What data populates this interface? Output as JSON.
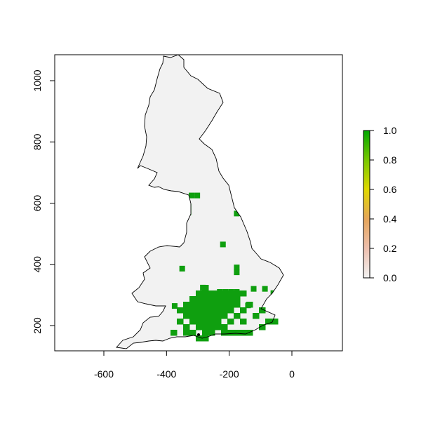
{
  "map": {
    "x_axis": {
      "min": -760,
      "max": 160,
      "ticks": [
        -600,
        -400,
        -200,
        0
      ],
      "labels": [
        "-600",
        "-400",
        "-200",
        "0"
      ]
    },
    "y_axis": {
      "min": 116,
      "max": 1064,
      "ticks": [
        200,
        400,
        600,
        800,
        1000
      ],
      "labels": [
        "200",
        "400",
        "600",
        "800",
        "1000"
      ]
    },
    "land_color": "#f2f2f2",
    "coast_color": "#000000",
    "presence_color": "#0f9f0f",
    "cell_size": 18,
    "presence_cells": [
      [
        -320,
        625
      ],
      [
        -302,
        625
      ],
      [
        -330,
        588
      ],
      [
        -330,
        570
      ],
      [
        -176,
        566
      ],
      [
        -220,
        465
      ],
      [
        -350,
        386
      ],
      [
        -176,
        390
      ],
      [
        -176,
        374
      ],
      [
        -284,
        324
      ],
      [
        -230,
        310
      ],
      [
        -212,
        310
      ],
      [
        -194,
        310
      ],
      [
        -176,
        310
      ],
      [
        -122,
        320
      ],
      [
        -86,
        320
      ],
      [
        -59,
        306
      ],
      [
        -374,
        264
      ],
      [
        -140,
        266
      ]
    ]
  },
  "colorbar": {
    "labels": [
      "0.0",
      "0.2",
      "0.4",
      "0.6",
      "0.8",
      "1.0"
    ],
    "stops": [
      {
        "value": 0.0,
        "color": "#f2f2f2"
      },
      {
        "value": 0.2,
        "color": "#edbfae"
      },
      {
        "value": 0.4,
        "color": "#e5a55a"
      },
      {
        "value": 0.6,
        "color": "#e0d800"
      },
      {
        "value": 0.8,
        "color": "#78c800"
      },
      {
        "value": 1.0,
        "color": "#00a600"
      }
    ]
  }
}
